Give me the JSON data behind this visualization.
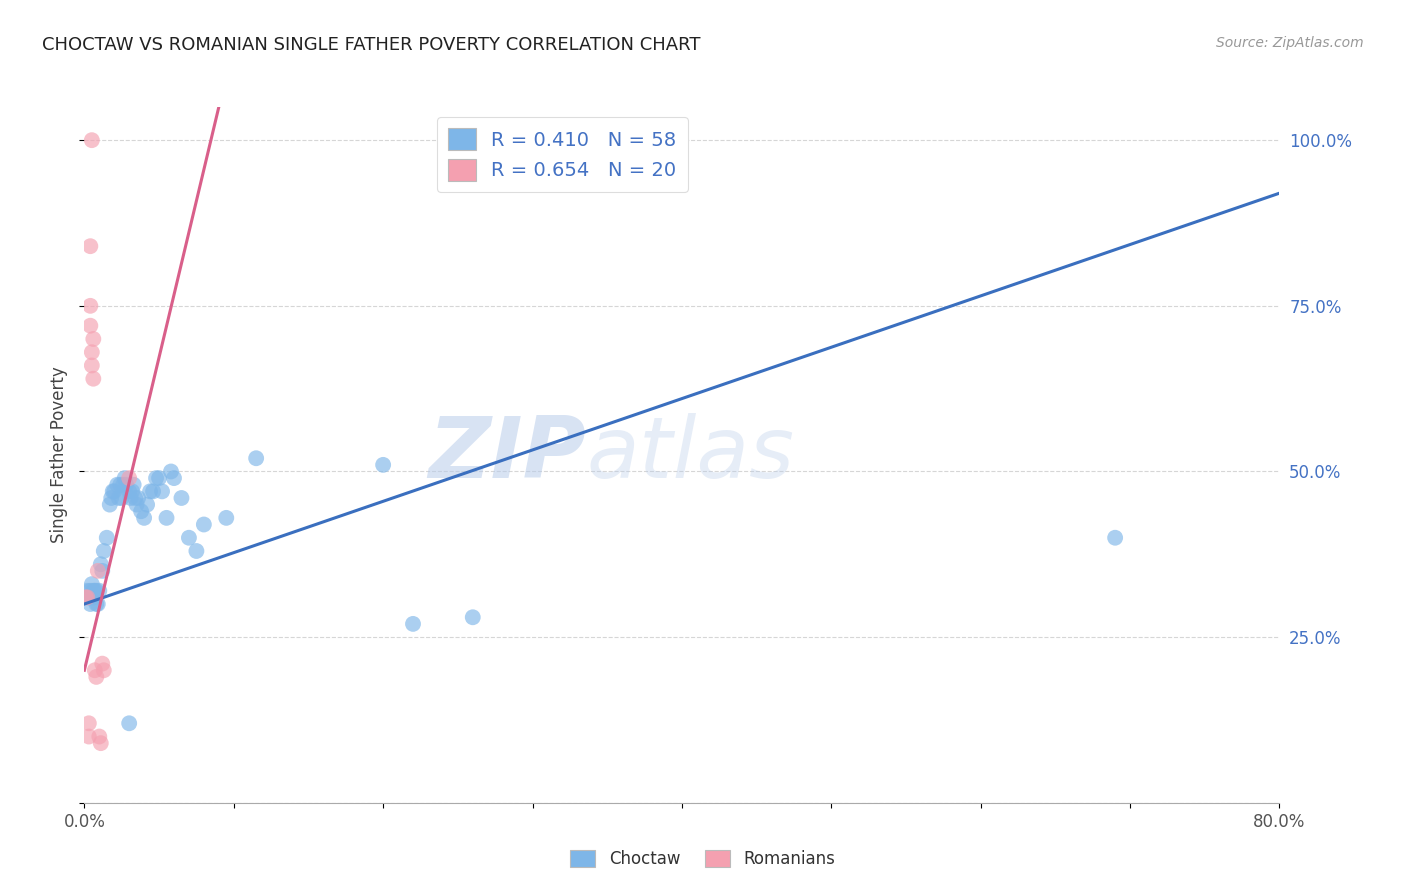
{
  "title": "CHOCTAW VS ROMANIAN SINGLE FATHER POVERTY CORRELATION CHART",
  "source": "Source: ZipAtlas.com",
  "ylabel": "Single Father Poverty",
  "watermark": "ZIPatlas",
  "choctaw_R": 0.41,
  "choctaw_N": 58,
  "romanian_R": 0.654,
  "romanian_N": 20,
  "xlim": [
    0.0,
    0.8
  ],
  "ylim": [
    0.0,
    1.05
  ],
  "xticks": [
    0.0,
    0.1,
    0.2,
    0.3,
    0.4,
    0.5,
    0.6,
    0.7,
    0.8
  ],
  "xticklabels": [
    "0.0%",
    "",
    "",
    "",
    "",
    "",
    "",
    "",
    "80.0%"
  ],
  "yticks_right": [
    0.25,
    0.5,
    0.75,
    1.0
  ],
  "ytick_labels_right": [
    "25.0%",
    "50.0%",
    "75.0%",
    "100.0%"
  ],
  "choctaw_color": "#7EB6E8",
  "romanian_color": "#F4A0B0",
  "choctaw_line_color": "#3A6FBF",
  "romanian_line_color": "#D95F8A",
  "legend_text_color": "#4472C4",
  "background_color": "#FFFFFF",
  "blue_line_x0": 0.0,
  "blue_line_y0": 0.3,
  "blue_line_x1": 0.8,
  "blue_line_y1": 0.92,
  "pink_line_x0": 0.0,
  "pink_line_y0": 0.2,
  "pink_line_x1": 0.09,
  "pink_line_y1": 1.05,
  "choctaw_x": [
    0.002,
    0.003,
    0.004,
    0.004,
    0.005,
    0.005,
    0.006,
    0.006,
    0.007,
    0.007,
    0.008,
    0.008,
    0.009,
    0.01,
    0.011,
    0.012,
    0.013,
    0.015,
    0.017,
    0.018,
    0.019,
    0.02,
    0.022,
    0.023,
    0.024,
    0.025,
    0.026,
    0.027,
    0.028,
    0.03,
    0.031,
    0.032,
    0.033,
    0.034,
    0.035,
    0.036,
    0.038,
    0.04,
    0.042,
    0.044,
    0.046,
    0.048,
    0.05,
    0.052,
    0.055,
    0.058,
    0.06,
    0.065,
    0.07,
    0.075,
    0.08,
    0.095,
    0.115,
    0.2,
    0.22,
    0.26,
    0.69,
    0.03
  ],
  "choctaw_y": [
    0.32,
    0.31,
    0.3,
    0.32,
    0.31,
    0.33,
    0.32,
    0.31,
    0.32,
    0.31,
    0.3,
    0.32,
    0.3,
    0.32,
    0.36,
    0.35,
    0.38,
    0.4,
    0.45,
    0.46,
    0.47,
    0.47,
    0.48,
    0.46,
    0.48,
    0.46,
    0.48,
    0.49,
    0.48,
    0.47,
    0.46,
    0.47,
    0.48,
    0.46,
    0.45,
    0.46,
    0.44,
    0.43,
    0.45,
    0.47,
    0.47,
    0.49,
    0.49,
    0.47,
    0.43,
    0.5,
    0.49,
    0.46,
    0.4,
    0.38,
    0.42,
    0.43,
    0.52,
    0.51,
    0.27,
    0.28,
    0.4,
    0.12
  ],
  "romanian_x": [
    0.001,
    0.002,
    0.003,
    0.003,
    0.004,
    0.004,
    0.005,
    0.005,
    0.006,
    0.007,
    0.008,
    0.009,
    0.01,
    0.011,
    0.012,
    0.013,
    0.004,
    0.005,
    0.006,
    0.03
  ],
  "romanian_y": [
    0.31,
    0.31,
    0.12,
    0.1,
    0.75,
    0.72,
    0.68,
    0.66,
    0.64,
    0.2,
    0.19,
    0.35,
    0.1,
    0.09,
    0.21,
    0.2,
    0.84,
    1.0,
    0.7,
    0.49
  ]
}
